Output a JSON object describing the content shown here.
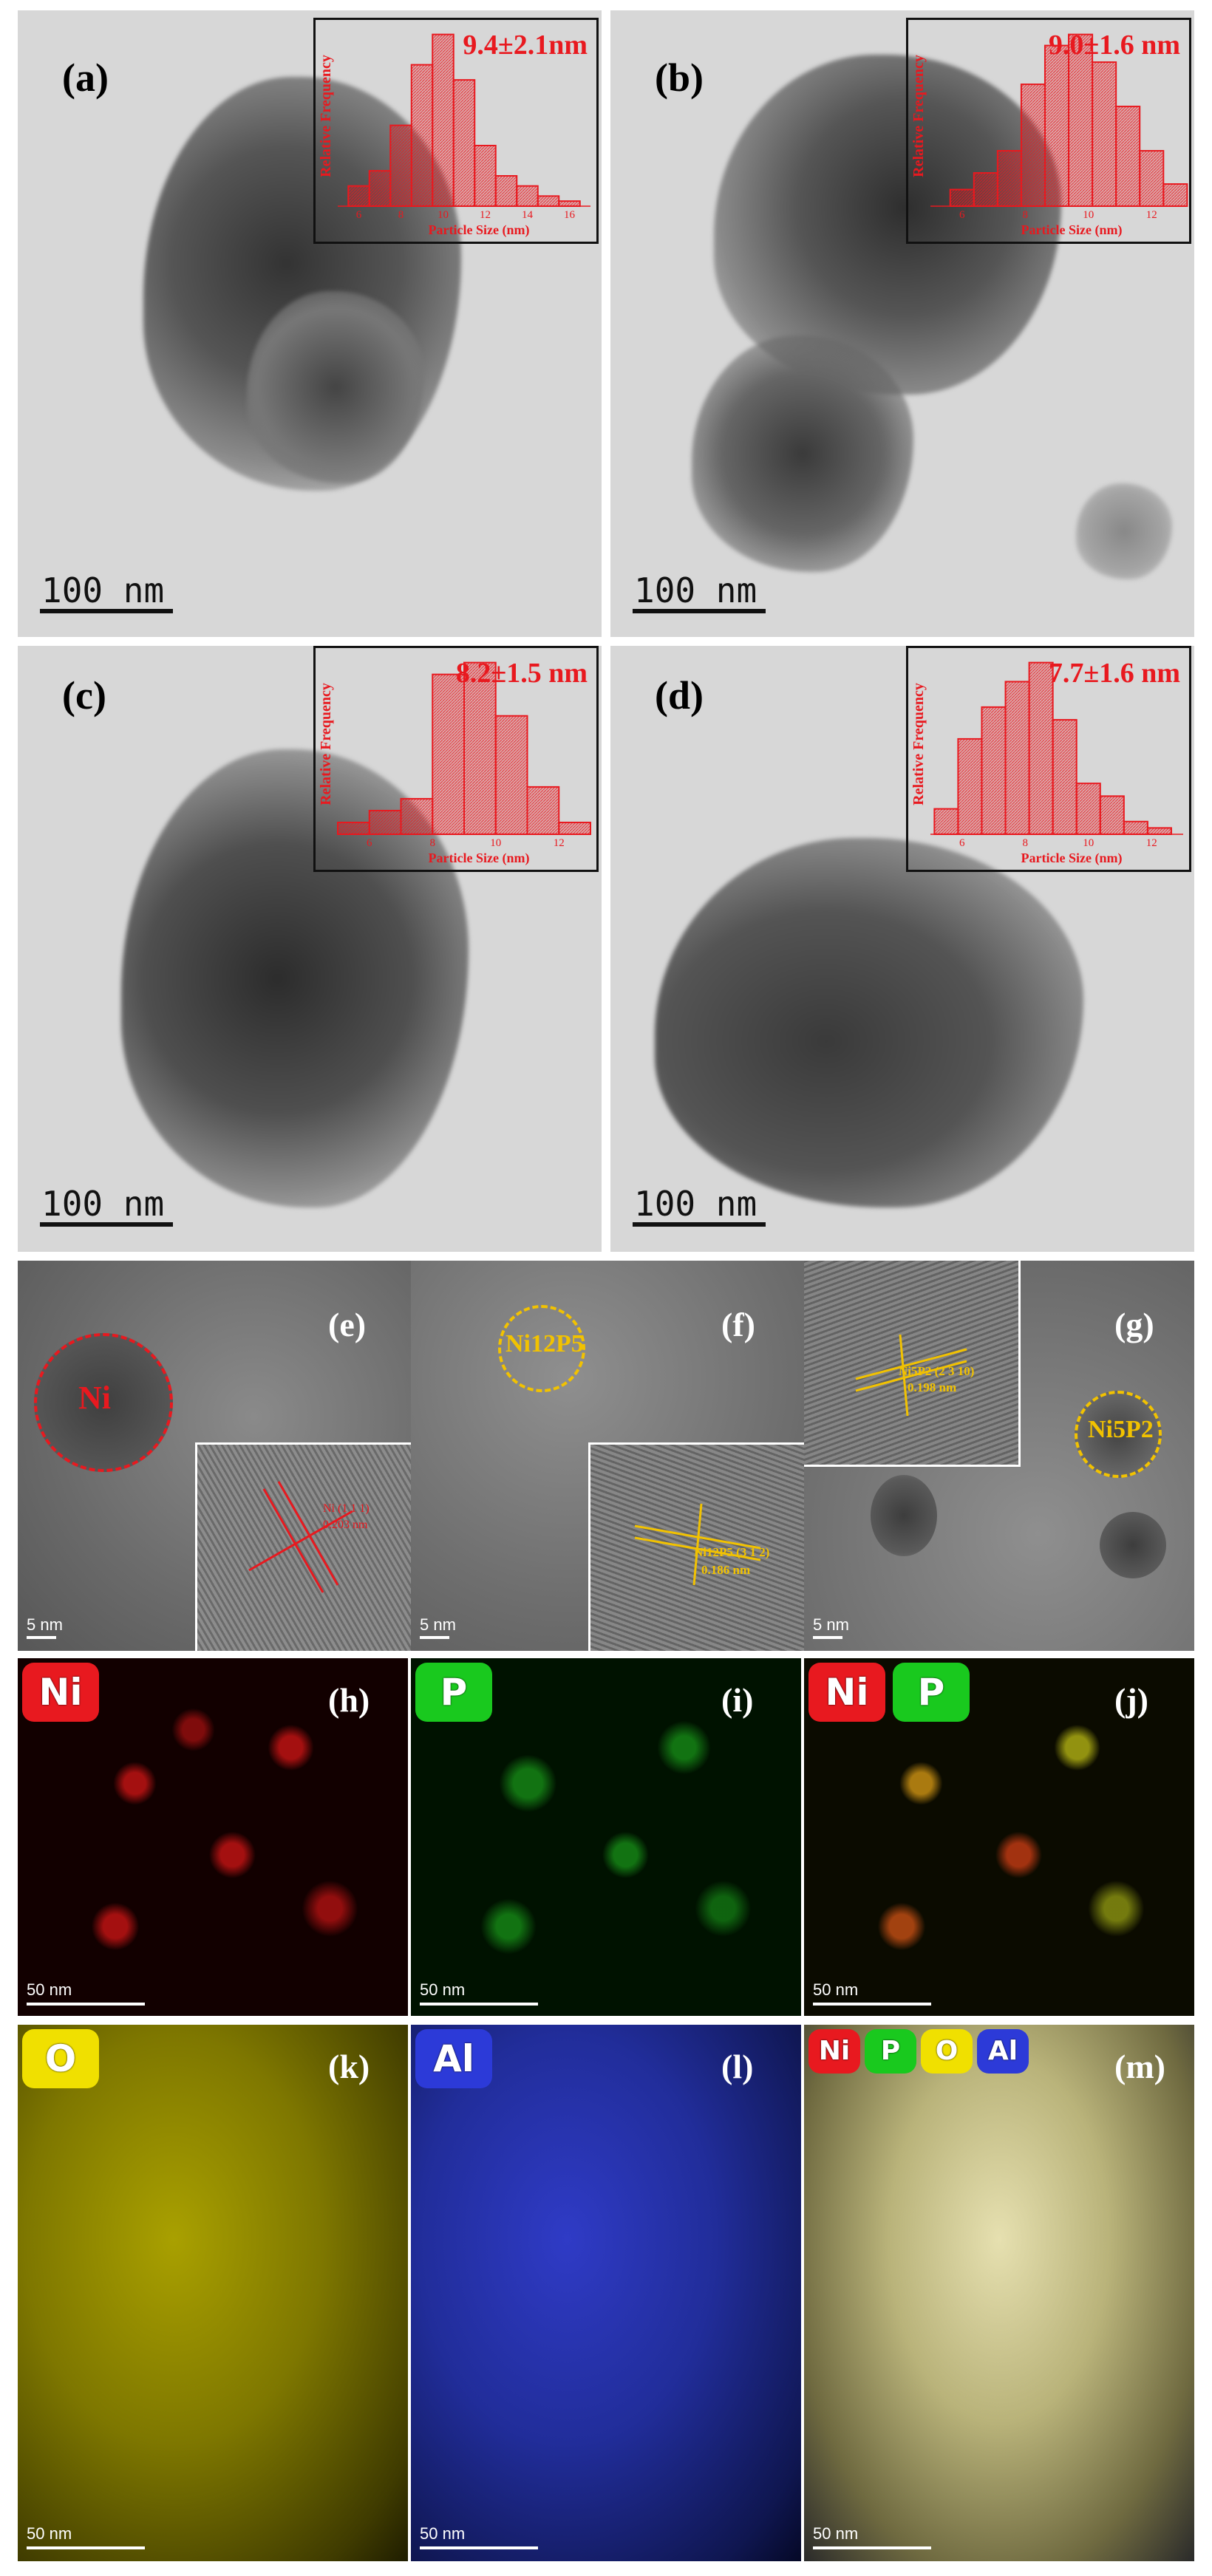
{
  "panels_tem": [
    {
      "label": "(a)",
      "scale": "100 nm",
      "inset_value": "9.4±2.1nm"
    },
    {
      "label": "(b)",
      "scale": "100 nm",
      "inset_value": "9.0±1.6 nm"
    },
    {
      "label": "(c)",
      "scale": "100 nm",
      "inset_value": "8.2±1.5 nm"
    },
    {
      "label": "(d)",
      "scale": "100 nm",
      "inset_value": "7.7±1.6 nm"
    }
  ],
  "panels_hrtem": [
    {
      "label": "(e)",
      "circle_label": "Ni",
      "inset_text_1": "Ni (1 1 1)",
      "inset_text_2": "0.203 nm",
      "scale": "5 nm",
      "circle_color": "#e8191f"
    },
    {
      "label": "(f)",
      "circle_label": "Ni12P5",
      "inset_text_1": "Ni12P5 (3 1 2)",
      "inset_text_2": "0.186 nm",
      "scale": "5 nm",
      "circle_color": "#f2c200"
    },
    {
      "label": "(g)",
      "circle_label": "Ni5P2",
      "inset_text_1": "Ni5P2 (2 3 10)",
      "inset_text_2": "0.198 nm",
      "scale": "5 nm",
      "circle_color": "#f2c200"
    }
  ],
  "panels_map": [
    {
      "label": "(h)",
      "badges": [
        "Ni"
      ],
      "scale": "50 nm"
    },
    {
      "label": "(i)",
      "badges": [
        "P"
      ],
      "scale": "50 nm"
    },
    {
      "label": "(j)",
      "badges": [
        "Ni",
        "P"
      ],
      "scale": "50 nm"
    },
    {
      "label": "(k)",
      "badges": [
        "O"
      ],
      "scale": "50 nm"
    },
    {
      "label": "(l)",
      "badges": [
        "Al"
      ],
      "scale": "50 nm"
    },
    {
      "label": "(m)",
      "badges": [
        "Ni",
        "P",
        "O",
        "Al"
      ],
      "scale": "50 nm"
    }
  ],
  "colors": {
    "ni": "#e8191f",
    "p": "#19c91e",
    "o": "#f0e000",
    "al": "#2c3ad8",
    "histogram": "#e8191f",
    "ring_yellow": "#f2c200"
  },
  "chart_data": [
    {
      "type": "bar",
      "panel": "(a)",
      "title": "9.4±2.1nm",
      "xlabel": "Particle Size (nm)",
      "ylabel": "Relative Frequency",
      "x_ticks": [
        "6",
        "8",
        "10",
        "12",
        "14",
        "16"
      ],
      "xlim": [
        5,
        17
      ],
      "bin_centers": [
        6,
        7,
        8,
        9,
        10,
        11,
        12,
        13,
        14,
        15,
        16
      ],
      "values": [
        0.04,
        0.07,
        0.16,
        0.28,
        0.34,
        0.25,
        0.12,
        0.06,
        0.04,
        0.02,
        0.01
      ]
    },
    {
      "type": "bar",
      "panel": "(b)",
      "title": "9.0±1.6 nm",
      "xlabel": "Particle Size (nm)",
      "ylabel": "Relative Frequency",
      "x_ticks": [
        "6",
        "8",
        "10",
        "12"
      ],
      "xlim": [
        5,
        13
      ],
      "bin_centers": [
        6,
        6.75,
        7.5,
        8.25,
        9,
        9.75,
        10.5,
        11.25,
        12,
        12.75
      ],
      "values": [
        0.03,
        0.06,
        0.1,
        0.22,
        0.29,
        0.31,
        0.26,
        0.18,
        0.1,
        0.04
      ]
    },
    {
      "type": "bar",
      "panel": "(c)",
      "title": "8.2±1.5 nm",
      "xlabel": "Particle Size (nm)",
      "ylabel": "Relative Frequency",
      "x_ticks": [
        "6",
        "8",
        "10",
        "12"
      ],
      "xlim": [
        5,
        13
      ],
      "bin_centers": [
        5.5,
        6.5,
        7.5,
        8.5,
        9.5,
        10.5,
        11.5,
        12.5
      ],
      "values": [
        0.02,
        0.04,
        0.06,
        0.27,
        0.29,
        0.2,
        0.08,
        0.02
      ]
    },
    {
      "type": "bar",
      "panel": "(d)",
      "title": "7.7±1.6 nm",
      "xlabel": "Particle Size (nm)",
      "ylabel": "Relative Frequency",
      "x_ticks": [
        "6",
        "8",
        "10",
        "12"
      ],
      "xlim": [
        5,
        13
      ],
      "bin_centers": [
        5.5,
        6.25,
        7,
        7.75,
        8.5,
        9.25,
        10,
        10.75,
        11.5,
        12.25
      ],
      "values": [
        0.04,
        0.15,
        0.2,
        0.24,
        0.27,
        0.18,
        0.08,
        0.06,
        0.02,
        0.01
      ]
    }
  ]
}
